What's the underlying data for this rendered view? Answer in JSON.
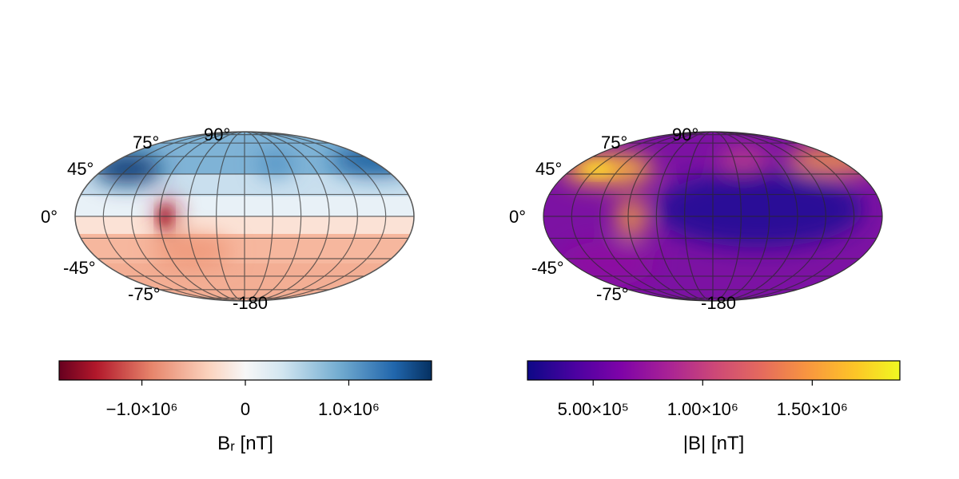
{
  "chart_data": [
    {
      "type": "heatmap",
      "projection": "mollweide",
      "colormap": "RdBu",
      "title": "",
      "lat_tick_labels": [
        "90°",
        "75°",
        "45°",
        "0°",
        "-45°",
        "-75°"
      ],
      "lon_tick_labels": [
        "-180"
      ],
      "colorbar": {
        "label": "Bᵣ [nT]",
        "range": [
          -1800000,
          1800000
        ],
        "ticks": [
          -1000000,
          0,
          1000000
        ],
        "tick_labels": [
          "−1.0×10⁶",
          "0",
          "1.0×10⁶"
        ]
      },
      "features": [
        {
          "lon": -130,
          "lat": 55,
          "value": 1750000
        },
        {
          "lon": 150,
          "lat": 55,
          "value": 1400000
        },
        {
          "lon": 10,
          "lat": 50,
          "value": 700000
        },
        {
          "lon": -80,
          "lat": 0,
          "value": -1600000
        },
        {
          "lon": -40,
          "lat": -60,
          "value": -700000
        }
      ]
    },
    {
      "type": "heatmap",
      "projection": "mollweide",
      "colormap": "plasma",
      "title": "",
      "lat_tick_labels": [
        "90°",
        "75°",
        "45°",
        "0°",
        "-45°",
        "-75°"
      ],
      "lon_tick_labels": [
        "-180"
      ],
      "colorbar": {
        "label": "|B| [nT]",
        "range": [
          200000,
          1900000
        ],
        "ticks": [
          500000,
          1000000,
          1500000
        ],
        "tick_labels": [
          "5.00×10⁵",
          "1.00×10⁶",
          "1.50×10⁶"
        ]
      },
      "features": [
        {
          "lon": -150,
          "lat": 50,
          "value": 1850000
        },
        {
          "lon": 150,
          "lat": 50,
          "value": 1450000
        },
        {
          "lon": -10,
          "lat": 55,
          "value": 1200000
        },
        {
          "lon": -80,
          "lat": 0,
          "value": 1550000
        },
        {
          "lon": 60,
          "lat": 0,
          "value": 250000
        }
      ]
    }
  ]
}
